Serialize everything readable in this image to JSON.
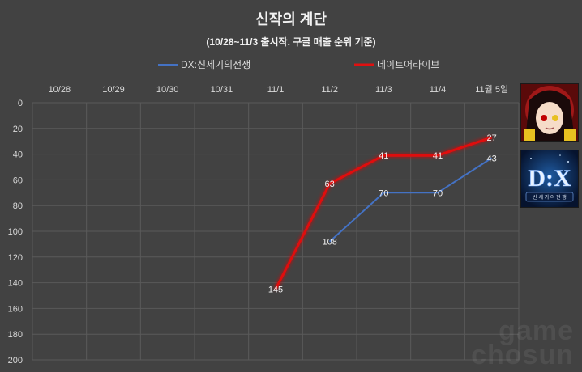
{
  "title": "신작의 계단",
  "subtitle": "(10/28~11/3 출시작. 구글 매출 순위 기준)",
  "watermark": {
    "line1": "game",
    "line2": "chosun"
  },
  "thumbnails": {
    "date_a_live_caption": "",
    "dx_logo_text": "D:X",
    "dx_caption": "신 세 기 의 전 쟁"
  },
  "chart_data": {
    "type": "line",
    "categories": [
      "10/28",
      "10/29",
      "10/30",
      "10/31",
      "11/1",
      "11/2",
      "11/3",
      "11/4",
      "11월 5일"
    ],
    "ylim": [
      0,
      200
    ],
    "y_inverted": true,
    "y_ticks": [
      0,
      20,
      40,
      60,
      80,
      100,
      120,
      140,
      160,
      180,
      200
    ],
    "grid": true,
    "legend_position": "top",
    "series": [
      {
        "name": "DX:신세기의전쟁",
        "color": "#4472c4",
        "glow": false,
        "values": [
          null,
          null,
          null,
          null,
          null,
          108,
          70,
          70,
          43
        ]
      },
      {
        "name": "데이트어라이브",
        "color": "#e01010",
        "glow": true,
        "values": [
          null,
          null,
          null,
          null,
          145,
          63,
          41,
          41,
          27
        ]
      }
    ]
  }
}
